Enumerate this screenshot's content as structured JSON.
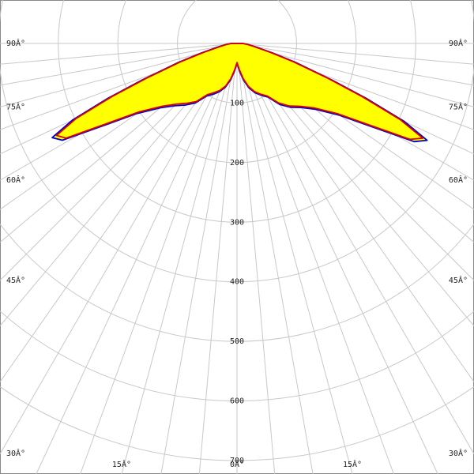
{
  "chart_data": {
    "type": "polar",
    "angles": [
      -90,
      -85,
      -80,
      -75,
      -72,
      -69,
      -67,
      -65,
      -63,
      -61,
      -58,
      -55,
      -50,
      -45,
      -40,
      -35,
      -30,
      -25,
      -20,
      -15,
      -10,
      -5,
      0,
      5,
      10,
      15,
      20,
      25,
      30,
      35,
      40,
      45,
      50,
      55,
      58,
      61,
      63,
      65,
      67,
      69,
      72,
      75,
      80,
      85,
      90
    ],
    "series": [
      {
        "color": "#0000cc",
        "fill": "#ffff00",
        "values": [
          10,
          18,
          30,
          62,
          105,
          170,
          235,
          305,
          348,
          335,
          255,
          205,
          168,
          148,
          135,
          122,
          102,
          94,
          86,
          76,
          62,
          46,
          33,
          46,
          62,
          77,
          88,
          96,
          104,
          125,
          140,
          152,
          172,
          210,
          260,
          340,
          358,
          310,
          235,
          170,
          105,
          62,
          30,
          18,
          10
        ]
      },
      {
        "color": "#dd0000",
        "values": [
          10,
          17,
          28,
          58,
          100,
          163,
          228,
          298,
          340,
          328,
          248,
          200,
          164,
          144,
          131,
          119,
          99,
          91,
          84,
          74,
          60,
          44,
          32,
          44,
          60,
          75,
          86,
          94,
          102,
          122,
          137,
          149,
          168,
          205,
          254,
          332,
          350,
          302,
          228,
          164,
          100,
          58,
          28,
          17,
          10
        ]
      }
    ],
    "rlim": [
      0,
      700
    ],
    "rticks": [
      100,
      200,
      300,
      400,
      500,
      600,
      700
    ],
    "angle_ticks": [
      {
        "value": -90,
        "label": "90Â°"
      },
      {
        "value": -75,
        "label": "75Â°"
      },
      {
        "value": -60,
        "label": "60Â°"
      },
      {
        "value": -45,
        "label": "45Â°"
      },
      {
        "value": -30,
        "label": "30Â°"
      },
      {
        "value": -15,
        "label": "15Â°"
      },
      {
        "value": 0,
        "label": "0Â°"
      },
      {
        "value": 15,
        "label": "15Â°"
      },
      {
        "value": 30,
        "label": "30Â°"
      },
      {
        "value": 45,
        "label": "45Â°"
      },
      {
        "value": 60,
        "label": "60Â°"
      },
      {
        "value": 75,
        "label": "75Â°"
      },
      {
        "value": 90,
        "label": "90Â°"
      }
    ],
    "angle_grid": [
      -90,
      -85,
      -80,
      -75,
      -70,
      -65,
      -60,
      -55,
      -50,
      -45,
      -40,
      -35,
      -30,
      -25,
      -20,
      -15,
      -10,
      -5,
      0,
      5,
      10,
      15,
      20,
      25,
      30,
      35,
      40,
      45,
      50,
      55,
      60,
      65,
      70,
      75,
      80,
      85,
      90
    ]
  }
}
